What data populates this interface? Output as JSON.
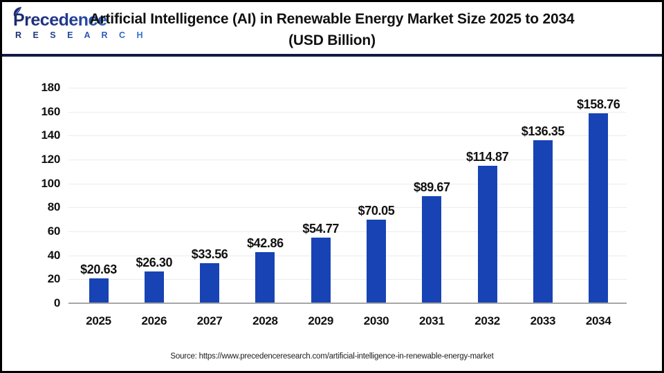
{
  "header": {
    "logo": {
      "name": "Precedence",
      "subtitle": "R E S E A R C H",
      "color_start": "#1d2a6e",
      "color_end": "#2f6fd8"
    },
    "title_line1": "Artificial Intelligence (AI) in Renewable Energy Market Size 2025 to 2034",
    "title_line2": "(USD Billion)",
    "divider_color": "#0f1b45"
  },
  "chart_data": {
    "type": "bar",
    "title": "Artificial Intelligence (AI) in Renewable Energy Market Size 2025 to 2034 (USD Billion)",
    "unit": "USD Billion",
    "categories": [
      "2025",
      "2026",
      "2027",
      "2028",
      "2029",
      "2030",
      "2031",
      "2032",
      "2033",
      "2034"
    ],
    "values": [
      20.63,
      26.3,
      33.56,
      42.86,
      54.77,
      70.05,
      89.67,
      114.87,
      136.35,
      158.76
    ],
    "value_labels": [
      "$20.63",
      "$26.30",
      "$33.56",
      "$42.86",
      "$54.77",
      "$70.05",
      "$89.67",
      "$114.87",
      "$136.35",
      "$158.76"
    ],
    "xlabel": "",
    "ylabel": "",
    "ylim": [
      0,
      180
    ],
    "ytick_step": 20,
    "yticks": [
      "0",
      "20",
      "40",
      "60",
      "80",
      "100",
      "120",
      "140",
      "160",
      "180"
    ],
    "grid": true,
    "legend": "none",
    "bar_color": "#1843b5",
    "gridline_color": "#ececec",
    "baseline_color": "#a6a6a6",
    "label_color": "#111111"
  },
  "footer": {
    "source": "Source: https://www.precedenceresearch.com/artificial-intelligence-in-renewable-energy-market"
  }
}
